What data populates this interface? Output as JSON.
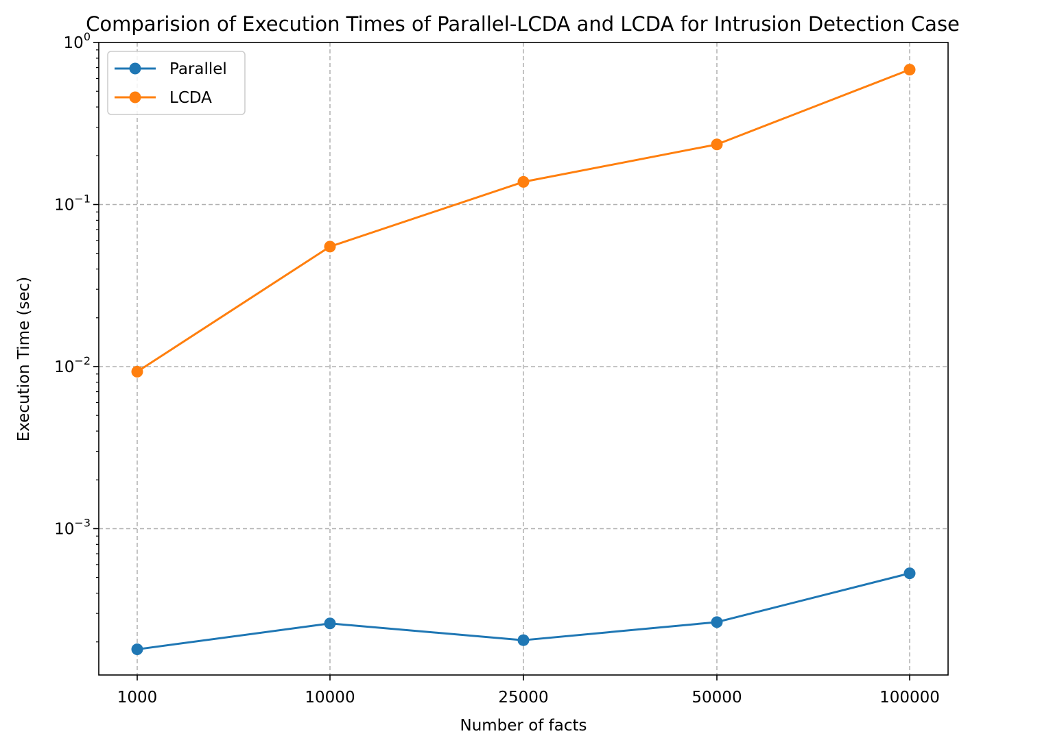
{
  "chart_data": {
    "type": "line",
    "title": "Comparision of Execution Times of Parallel-LCDA and LCDA for Intrusion Detection Case",
    "xlabel": "Number of facts",
    "ylabel": "Execution Time (sec)",
    "y_scale": "log",
    "ylim": [
      0.000125,
      1.0
    ],
    "categories": [
      "1000",
      "10000",
      "25000",
      "50000",
      "100000"
    ],
    "y_ticks": [
      {
        "value": 0.001,
        "base": "10",
        "exp": "−3"
      },
      {
        "value": 0.01,
        "base": "10",
        "exp": "−2"
      },
      {
        "value": 0.1,
        "base": "10",
        "exp": "−1"
      },
      {
        "value": 1.0,
        "base": "10",
        "exp": "0"
      }
    ],
    "grid": true,
    "legend_position": "top-left",
    "series": [
      {
        "name": "Parallel",
        "color": "#1f77b4",
        "marker": "circle",
        "values": [
          0.00018,
          0.00026,
          0.000205,
          0.000265,
          0.00053
        ]
      },
      {
        "name": "LCDA",
        "color": "#ff7f0e",
        "marker": "circle",
        "values": [
          0.0093,
          0.055,
          0.138,
          0.235,
          0.68
        ]
      }
    ]
  }
}
